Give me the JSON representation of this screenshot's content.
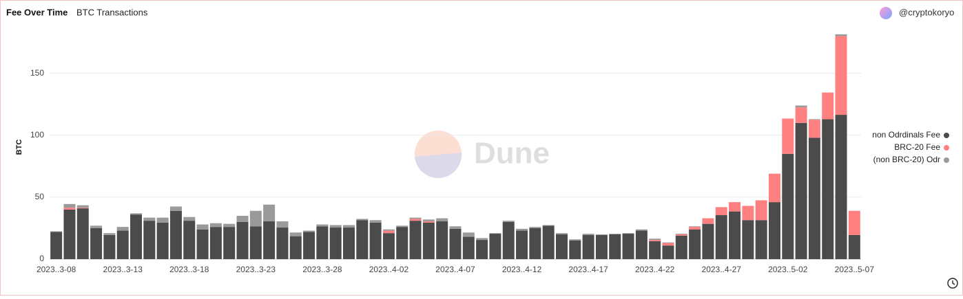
{
  "header": {
    "title": "Fee Over Time",
    "subtitle": "BTC Transactions",
    "author": "@cryptokoryo"
  },
  "watermark": "Dune",
  "chart_data": {
    "type": "stacked-bar",
    "y_label": "BTC",
    "categories": [
      "2023..3-08",
      null,
      null,
      null,
      null,
      "2023..3-13",
      null,
      null,
      null,
      null,
      "2023..3-18",
      null,
      null,
      null,
      null,
      "2023..3-23",
      null,
      null,
      null,
      null,
      "2023..3-28",
      null,
      null,
      null,
      null,
      "2023..4-02",
      null,
      null,
      null,
      null,
      "2023..4-07",
      null,
      null,
      null,
      null,
      "2023..4-12",
      null,
      null,
      null,
      null,
      "2023..4-17",
      null,
      null,
      null,
      null,
      "2023..4-22",
      null,
      null,
      null,
      null,
      "2023..4-27",
      null,
      null,
      null,
      null,
      "2023..5-02",
      null,
      null,
      null,
      null,
      "2023..5-07"
    ],
    "series": [
      {
        "name": "non Odrdinals Fee",
        "color": "#4b4b4b",
        "values": [
          22,
          40,
          41,
          25,
          19.5,
          23,
          36,
          31,
          29.5,
          39,
          31,
          24,
          26,
          26,
          30,
          26.5,
          30.5,
          25.5,
          18.5,
          22,
          26.5,
          25.5,
          25.5,
          31.5,
          29.5,
          21,
          26,
          31,
          29.5,
          30.5,
          24.5,
          18,
          15.5,
          20.5,
          30,
          23,
          25,
          27,
          20,
          15,
          19.5,
          19.5,
          20,
          20.5,
          23,
          14.5,
          11,
          19,
          24,
          28.5,
          35.5,
          38.5,
          31.5,
          31.5,
          46,
          85,
          110,
          98,
          113,
          116.5,
          19.5
        ]
      },
      {
        "name": "BRC-20 Fee",
        "color": "#ff8080",
        "values": [
          0,
          1.5,
          0.5,
          0,
          0,
          0,
          0,
          0,
          0,
          0,
          0,
          0,
          0,
          0,
          0,
          0,
          0,
          0,
          0,
          0,
          0,
          0,
          0,
          0,
          0,
          2,
          0,
          1.5,
          1,
          0,
          0,
          0,
          0,
          0,
          0,
          0,
          0,
          0,
          0,
          0,
          0,
          0,
          0,
          0,
          0,
          1,
          2,
          1,
          2,
          4.5,
          6.5,
          7.5,
          11.5,
          16,
          23,
          28.5,
          12.5,
          14.5,
          21.5,
          63.5,
          19.5
        ]
      },
      {
        "name": "(non BRC-20) Odr",
        "color": "#9a9a9a",
        "values": [
          0.5,
          3,
          2,
          2,
          1.5,
          3,
          1,
          2.5,
          4,
          3.5,
          3,
          4,
          3,
          2.5,
          5,
          12.5,
          13.5,
          5,
          3,
          1,
          1.5,
          2,
          2,
          1,
          2,
          1,
          1,
          1,
          1.5,
          2.5,
          2,
          3.5,
          1.5,
          0.5,
          1,
          1.5,
          1,
          0.5,
          1,
          1,
          1,
          0.5,
          0.5,
          0.5,
          1,
          1,
          0.5,
          0.5,
          0.5,
          0,
          0,
          0,
          0,
          0,
          0,
          0,
          1.5,
          0.5,
          0,
          1.5,
          0
        ]
      }
    ],
    "ylim": [
      0,
      187
    ],
    "yticks": [
      0,
      50,
      100,
      150
    ],
    "grid": true,
    "legend": "right"
  }
}
